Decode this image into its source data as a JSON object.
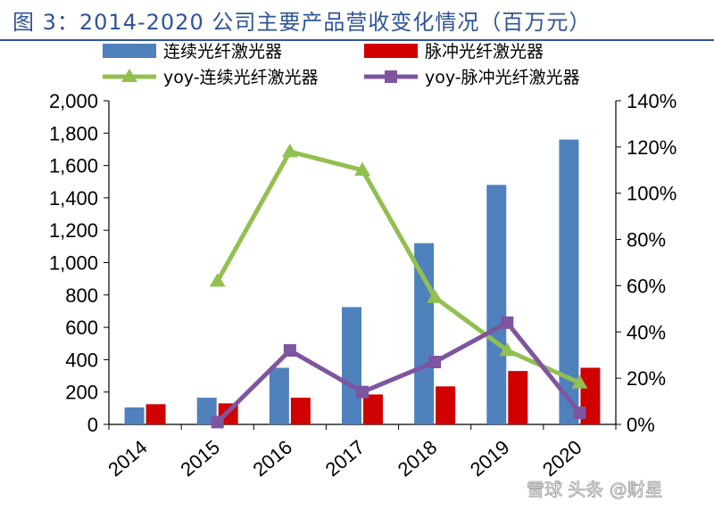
{
  "header": {
    "title": "图 3：2014-2020 公司主要产品营收变化情况（百万元）"
  },
  "watermark": {
    "text": "雪球 头条 @财星"
  },
  "chart_data": {
    "type": "bar",
    "categories": [
      "2014",
      "2015",
      "2016",
      "2017",
      "2018",
      "2019",
      "2020"
    ],
    "series": [
      {
        "name": "连续光纤激光器",
        "kind": "bar",
        "axis": "left",
        "color": "#4f81bd",
        "values": [
          105,
          165,
          350,
          725,
          1120,
          1480,
          1760
        ]
      },
      {
        "name": "脉冲光纤激光器",
        "kind": "bar",
        "axis": "left",
        "color": "#d00000",
        "values": [
          125,
          130,
          165,
          185,
          235,
          330,
          350
        ]
      },
      {
        "name": "yoy-连续光纤激光器",
        "kind": "line",
        "marker": "triangle",
        "axis": "right",
        "color": "#92c050",
        "values": [
          null,
          0.62,
          1.18,
          1.1,
          0.55,
          0.32,
          0.18
        ]
      },
      {
        "name": "yoy-脉冲光纤激光器",
        "kind": "line",
        "marker": "square",
        "axis": "right",
        "color": "#7e55a0",
        "values": [
          null,
          0.01,
          0.32,
          0.14,
          0.27,
          0.44,
          0.05
        ]
      }
    ],
    "y_left": {
      "ylim": [
        0,
        2000
      ],
      "ticks": [
        0,
        200,
        400,
        600,
        800,
        1000,
        1200,
        1400,
        1600,
        1800,
        2000
      ],
      "tick_labels": [
        "0",
        "200",
        "400",
        "600",
        "800",
        "1,000",
        "1,200",
        "1,400",
        "1,600",
        "1,800",
        "2,000"
      ]
    },
    "y_right": {
      "ylim": [
        0,
        1.4
      ],
      "ticks": [
        0,
        0.2,
        0.4,
        0.6,
        0.8,
        1.0,
        1.2,
        1.4
      ],
      "tick_labels": [
        "0%",
        "20%",
        "40%",
        "60%",
        "80%",
        "100%",
        "120%",
        "140%"
      ]
    },
    "legend": {
      "position": "top",
      "columns": 2
    },
    "grid": false
  }
}
